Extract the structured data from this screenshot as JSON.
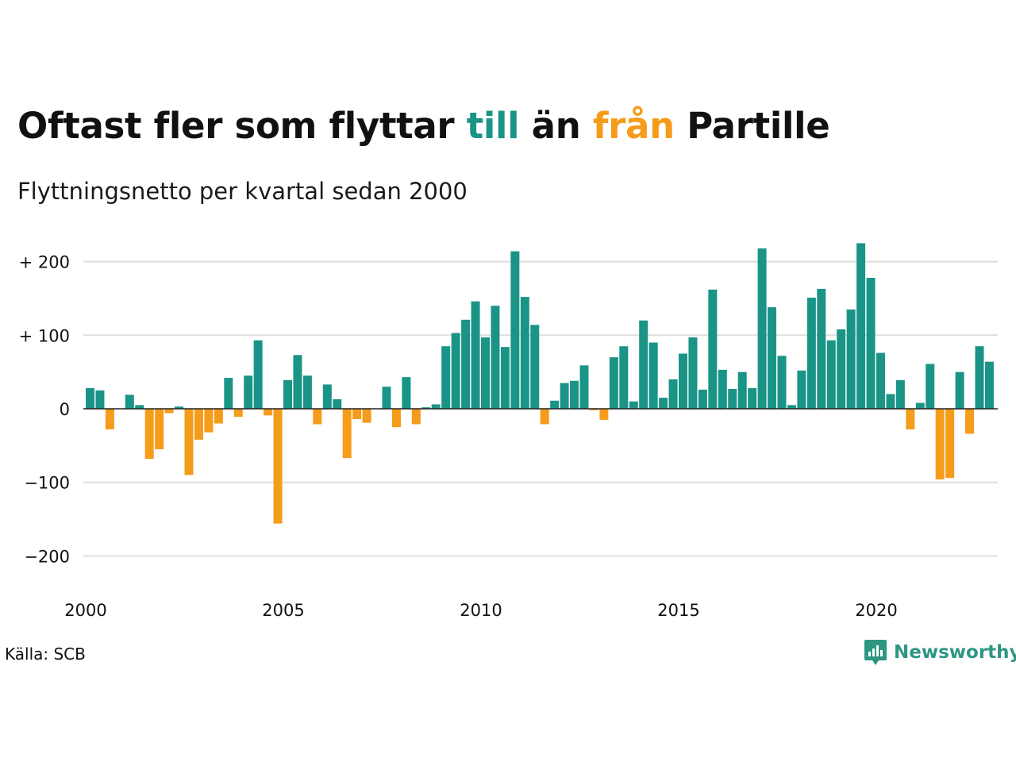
{
  "header": {
    "title_part1": "Oftast fler som flyttar ",
    "title_pos_word": "till",
    "title_part2": " än ",
    "title_neg_word": "från",
    "title_part3": " Partille",
    "subtitle": "Flyttningsnetto per kvartal sedan 2000"
  },
  "footer": {
    "source": "Källa: SCB",
    "brand": "Newsworthy"
  },
  "colors": {
    "positive": "#1a9486",
    "negative": "#f59c1a",
    "grid": "#dddddd",
    "zero_line": "#222222",
    "brand": "#2e9683"
  },
  "chart_data": {
    "type": "bar",
    "title": "Oftast fler som flyttar till än från Partille",
    "subtitle": "Flyttningsnetto per kvartal sedan 2000",
    "x_start_year": 2000,
    "periods_per_year": 4,
    "ylim": [
      -240,
      240
    ],
    "y_ticks": [
      200,
      100,
      0,
      -100,
      -200
    ],
    "y_tick_labels": [
      "+ 200",
      "+ 100",
      "0",
      "−100",
      "−200"
    ],
    "x_ticks": [
      2000,
      2005,
      2010,
      2015,
      2020
    ],
    "x_tick_labels": [
      "2000",
      "2005",
      "2010",
      "2015",
      "2020"
    ],
    "grid": true,
    "values": [
      28,
      25,
      -28,
      0,
      19,
      5,
      -68,
      -55,
      -6,
      3,
      -90,
      -42,
      -32,
      -20,
      42,
      -11,
      45,
      93,
      -9,
      -156,
      39,
      73,
      45,
      -21,
      33,
      13,
      -67,
      -14,
      -19,
      0,
      30,
      -25,
      43,
      -21,
      2,
      6,
      85,
      103,
      121,
      146,
      97,
      140,
      84,
      214,
      152,
      114,
      -21,
      11,
      35,
      38,
      59,
      -2,
      -15,
      70,
      85,
      10,
      120,
      90,
      15,
      40,
      75,
      97,
      26,
      162,
      53,
      27,
      50,
      28,
      218,
      138,
      72,
      5,
      52,
      151,
      163,
      93,
      108,
      135,
      225,
      178,
      76,
      20,
      39,
      -28,
      8,
      61,
      -96,
      -94,
      50,
      -34,
      85,
      64
    ]
  }
}
